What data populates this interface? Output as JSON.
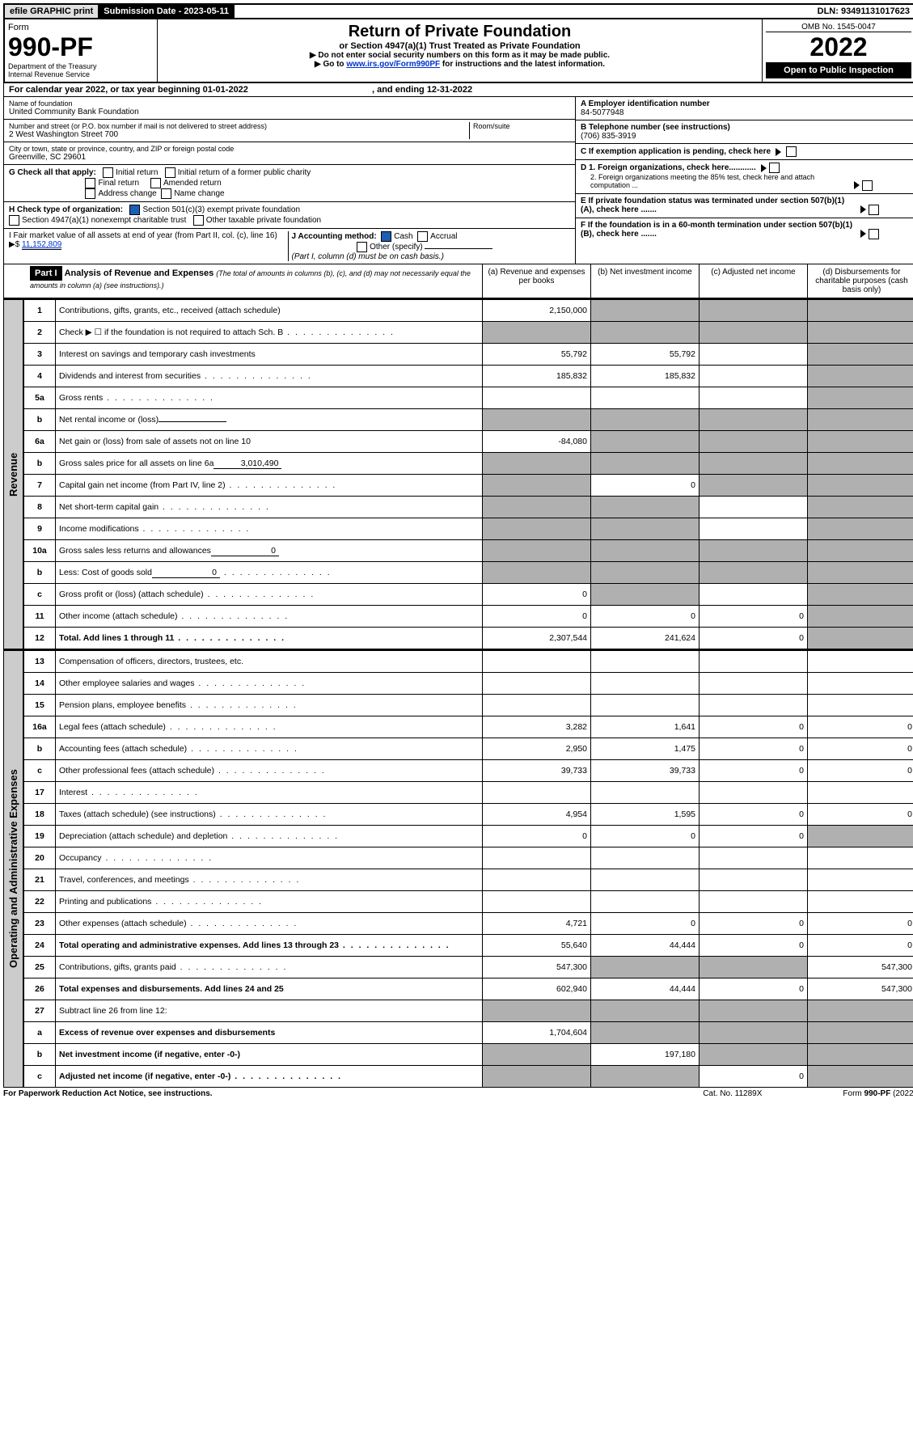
{
  "topbar": {
    "efile": "efile GRAPHIC print",
    "subdate_label": "Submission Date - 2023-05-11",
    "dln": "DLN: 93491131017623"
  },
  "header": {
    "form_label": "Form",
    "form_no": "990-PF",
    "dept1": "Department of the Treasury",
    "dept2": "Internal Revenue Service",
    "title": "Return of Private Foundation",
    "subtitle": "or Section 4947(a)(1) Trust Treated as Private Foundation",
    "note1": "▶ Do not enter social security numbers on this form as it may be made public.",
    "note2_pre": "▶ Go to ",
    "note2_link": "www.irs.gov/Form990PF",
    "note2_post": " for instructions and the latest information.",
    "omb": "OMB No. 1545-0047",
    "year": "2022",
    "open": "Open to Public Inspection"
  },
  "cal": {
    "text_a": "For calendar year 2022, or tax year beginning 01-01-2022",
    "text_b": ", and ending 12-31-2022"
  },
  "name_block": {
    "label": "Name of foundation",
    "value": "United Community Bank Foundation",
    "addr_label": "Number and street (or P.O. box number if mail is not delivered to street address)",
    "room_label": "Room/suite",
    "addr": "2 West Washington Street 700",
    "city_label": "City or town, state or province, country, and ZIP or foreign postal code",
    "city": "Greenville, SC  29601"
  },
  "right_block": {
    "a_label": "A Employer identification number",
    "ein": "84-5077948",
    "b_label": "B Telephone number (see instructions)",
    "phone": "(706) 835-3919",
    "c_label": "C If exemption application is pending, check here",
    "d1": "D 1. Foreign organizations, check here............",
    "d2": "2. Foreign organizations meeting the 85% test, check here and attach computation ...",
    "e_label": "E  If private foundation status was terminated under section 507(b)(1)(A), check here .......",
    "f_label": "F  If the foundation is in a 60-month termination under section 507(b)(1)(B), check here ......."
  },
  "checks": {
    "g_label": "G Check all that apply:",
    "initial": "Initial return",
    "initial_former": "Initial return of a former public charity",
    "final": "Final return",
    "amended": "Amended return",
    "addr_change": "Address change",
    "name_change": "Name change",
    "h_label": "H Check type of organization:",
    "h1": "Section 501(c)(3) exempt private foundation",
    "h2": "Section 4947(a)(1) nonexempt charitable trust",
    "h3": "Other taxable private foundation",
    "i_label": "I Fair market value of all assets at end of year (from Part II, col. (c), line 16) ▶$",
    "i_val": "11,152,809",
    "j_label": "J Accounting method:",
    "cash": "Cash",
    "accrual": "Accrual",
    "other": "Other (specify)",
    "j_note": "(Part I, column (d) must be on cash basis.)"
  },
  "part1": {
    "label": "Part I",
    "title": "Analysis of Revenue and Expenses",
    "title_note": "(The total of amounts in columns (b), (c), and (d) may not necessarily equal the amounts in column (a) (see instructions).)",
    "col_a": "(a)   Revenue and expenses per books",
    "col_b": "(b)   Net investment income",
    "col_c": "(c)   Adjusted net income",
    "col_d": "(d)   Disbursements for charitable purposes (cash basis only)"
  },
  "side": {
    "revenue": "Revenue",
    "expenses": "Operating and Administrative Expenses"
  },
  "rows": [
    {
      "n": "1",
      "t": "Contributions, gifts, grants, etc., received (attach schedule)",
      "a": "2,150,000",
      "b": "",
      "c": "",
      "d": "",
      "grey": [
        "b",
        "c",
        "d"
      ]
    },
    {
      "n": "2",
      "t": "Check ▶ ☐ if the foundation is not required to attach Sch. B",
      "dots": true,
      "a": "",
      "b": "",
      "c": "",
      "d": "",
      "grey": [
        "a",
        "b",
        "c",
        "d"
      ]
    },
    {
      "n": "3",
      "t": "Interest on savings and temporary cash investments",
      "a": "55,792",
      "b": "55,792",
      "c": "",
      "d": "",
      "grey": [
        "d"
      ]
    },
    {
      "n": "4",
      "t": "Dividends and interest from securities",
      "dots": true,
      "a": "185,832",
      "b": "185,832",
      "c": "",
      "d": "",
      "grey": [
        "d"
      ]
    },
    {
      "n": "5a",
      "t": "Gross rents",
      "dots": true,
      "a": "",
      "b": "",
      "c": "",
      "d": "",
      "grey": [
        "d"
      ]
    },
    {
      "n": "b",
      "t": "Net rental income or (loss)",
      "inline": "",
      "a": "",
      "b": "",
      "c": "",
      "d": "",
      "grey": [
        "a",
        "b",
        "c",
        "d"
      ]
    },
    {
      "n": "6a",
      "t": "Net gain or (loss) from sale of assets not on line 10",
      "a": "-84,080",
      "b": "",
      "c": "",
      "d": "",
      "grey": [
        "b",
        "c",
        "d"
      ]
    },
    {
      "n": "b",
      "t": "Gross sales price for all assets on line 6a",
      "inline": "3,010,490",
      "a": "",
      "b": "",
      "c": "",
      "d": "",
      "grey": [
        "a",
        "b",
        "c",
        "d"
      ]
    },
    {
      "n": "7",
      "t": "Capital gain net income (from Part IV, line 2)",
      "dots": true,
      "a": "",
      "b": "0",
      "c": "",
      "d": "",
      "grey": [
        "a",
        "c",
        "d"
      ]
    },
    {
      "n": "8",
      "t": "Net short-term capital gain",
      "dots": true,
      "a": "",
      "b": "",
      "c": "",
      "d": "",
      "grey": [
        "a",
        "b",
        "d"
      ]
    },
    {
      "n": "9",
      "t": "Income modifications",
      "dots": true,
      "a": "",
      "b": "",
      "c": "",
      "d": "",
      "grey": [
        "a",
        "b",
        "d"
      ]
    },
    {
      "n": "10a",
      "t": "Gross sales less returns and allowances",
      "inline": "0",
      "a": "",
      "b": "",
      "c": "",
      "d": "",
      "grey": [
        "a",
        "b",
        "c",
        "d"
      ]
    },
    {
      "n": "b",
      "t": "Less: Cost of goods sold",
      "dots": true,
      "inline": "0",
      "a": "",
      "b": "",
      "c": "",
      "d": "",
      "grey": [
        "a",
        "b",
        "c",
        "d"
      ]
    },
    {
      "n": "c",
      "t": "Gross profit or (loss) (attach schedule)",
      "dots": true,
      "a": "0",
      "b": "",
      "c": "",
      "d": "",
      "grey": [
        "b",
        "d"
      ]
    },
    {
      "n": "11",
      "t": "Other income (attach schedule)",
      "dots": true,
      "a": "0",
      "b": "0",
      "c": "0",
      "d": "",
      "grey": [
        "d"
      ]
    },
    {
      "n": "12",
      "t": "Total. Add lines 1 through 11",
      "bold": true,
      "dots": true,
      "a": "2,307,544",
      "b": "241,624",
      "c": "0",
      "d": "",
      "grey": [
        "d"
      ]
    }
  ],
  "exp_rows": [
    {
      "n": "13",
      "t": "Compensation of officers, directors, trustees, etc.",
      "a": "",
      "b": "",
      "c": "",
      "d": ""
    },
    {
      "n": "14",
      "t": "Other employee salaries and wages",
      "dots": true,
      "a": "",
      "b": "",
      "c": "",
      "d": ""
    },
    {
      "n": "15",
      "t": "Pension plans, employee benefits",
      "dots": true,
      "a": "",
      "b": "",
      "c": "",
      "d": ""
    },
    {
      "n": "16a",
      "t": "Legal fees (attach schedule)",
      "dots": true,
      "a": "3,282",
      "b": "1,641",
      "c": "0",
      "d": "0"
    },
    {
      "n": "b",
      "t": "Accounting fees (attach schedule)",
      "dots": true,
      "a": "2,950",
      "b": "1,475",
      "c": "0",
      "d": "0"
    },
    {
      "n": "c",
      "t": "Other professional fees (attach schedule)",
      "dots": true,
      "a": "39,733",
      "b": "39,733",
      "c": "0",
      "d": "0"
    },
    {
      "n": "17",
      "t": "Interest",
      "dots": true,
      "a": "",
      "b": "",
      "c": "",
      "d": ""
    },
    {
      "n": "18",
      "t": "Taxes (attach schedule) (see instructions)",
      "dots": true,
      "a": "4,954",
      "b": "1,595",
      "c": "0",
      "d": "0"
    },
    {
      "n": "19",
      "t": "Depreciation (attach schedule) and depletion",
      "dots": true,
      "a": "0",
      "b": "0",
      "c": "0",
      "d": "",
      "grey": [
        "d"
      ]
    },
    {
      "n": "20",
      "t": "Occupancy",
      "dots": true,
      "a": "",
      "b": "",
      "c": "",
      "d": ""
    },
    {
      "n": "21",
      "t": "Travel, conferences, and meetings",
      "dots": true,
      "a": "",
      "b": "",
      "c": "",
      "d": ""
    },
    {
      "n": "22",
      "t": "Printing and publications",
      "dots": true,
      "a": "",
      "b": "",
      "c": "",
      "d": ""
    },
    {
      "n": "23",
      "t": "Other expenses (attach schedule)",
      "dots": true,
      "a": "4,721",
      "b": "0",
      "c": "0",
      "d": "0"
    },
    {
      "n": "24",
      "t": "Total operating and administrative expenses. Add lines 13 through 23",
      "bold": true,
      "dots": true,
      "a": "55,640",
      "b": "44,444",
      "c": "0",
      "d": "0"
    },
    {
      "n": "25",
      "t": "Contributions, gifts, grants paid",
      "dots": true,
      "a": "547,300",
      "b": "",
      "c": "",
      "d": "547,300",
      "grey": [
        "b",
        "c"
      ]
    },
    {
      "n": "26",
      "t": "Total expenses and disbursements. Add lines 24 and 25",
      "bold": true,
      "a": "602,940",
      "b": "44,444",
      "c": "0",
      "d": "547,300"
    },
    {
      "n": "27",
      "t": "Subtract line 26 from line 12:",
      "a": "",
      "b": "",
      "c": "",
      "d": "",
      "grey": [
        "a",
        "b",
        "c",
        "d"
      ]
    },
    {
      "n": "a",
      "t": "Excess of revenue over expenses and disbursements",
      "bold": true,
      "a": "1,704,604",
      "b": "",
      "c": "",
      "d": "",
      "grey": [
        "b",
        "c",
        "d"
      ]
    },
    {
      "n": "b",
      "t": "Net investment income (if negative, enter -0-)",
      "bold": true,
      "a": "",
      "b": "197,180",
      "c": "",
      "d": "",
      "grey": [
        "a",
        "c",
        "d"
      ]
    },
    {
      "n": "c",
      "t": "Adjusted net income (if negative, enter -0-)",
      "bold": true,
      "dots": true,
      "a": "",
      "b": "",
      "c": "0",
      "d": "",
      "grey": [
        "a",
        "b",
        "d"
      ]
    }
  ],
  "footer": {
    "left": "For Paperwork Reduction Act Notice, see instructions.",
    "mid": "Cat. No. 11289X",
    "right": "Form 990-PF (2022)"
  }
}
